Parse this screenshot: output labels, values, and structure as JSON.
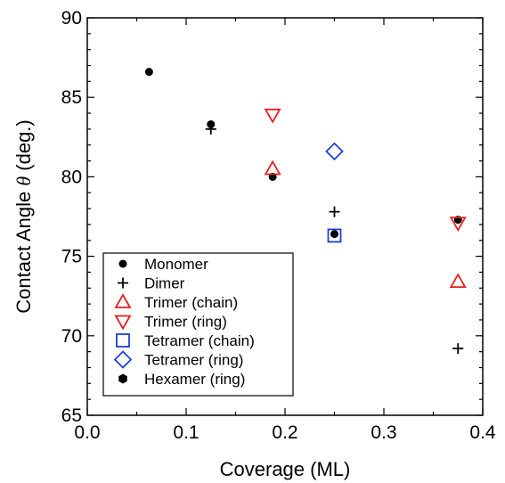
{
  "chart_data": {
    "type": "scatter",
    "xlabel": "Coverage (ML)",
    "ylabel_prefix": "Contact Angle ",
    "ylabel_symbol": "θ",
    "ylabel_suffix": " (deg.)",
    "xlim": [
      0.0,
      0.4
    ],
    "ylim": [
      65,
      90
    ],
    "x_ticks": [
      0.0,
      0.1,
      0.2,
      0.3,
      0.4
    ],
    "x_tick_labels": [
      "0.0",
      "0.1",
      "0.2",
      "0.3",
      "0.4"
    ],
    "y_ticks": [
      65,
      70,
      75,
      80,
      85,
      90
    ],
    "y_tick_labels": [
      "65",
      "70",
      "75",
      "80",
      "85",
      "90"
    ],
    "grid": false,
    "legend_position": "bottom-left",
    "series": [
      {
        "name": "Monomer",
        "marker": "filled-circle",
        "color": "#000000",
        "points": [
          [
            0.0625,
            86.6
          ],
          [
            0.125,
            83.3
          ],
          [
            0.1875,
            80.0
          ],
          [
            0.25,
            76.4
          ],
          [
            0.375,
            77.3
          ]
        ]
      },
      {
        "name": "Dimer",
        "marker": "plus",
        "color": "#000000",
        "points": [
          [
            0.125,
            83.0
          ],
          [
            0.25,
            77.8
          ],
          [
            0.375,
            69.2
          ]
        ]
      },
      {
        "name": "Trimer (chain)",
        "marker": "triangle-up",
        "color": "#e8201c",
        "points": [
          [
            0.1875,
            80.5
          ],
          [
            0.375,
            73.4
          ]
        ]
      },
      {
        "name": "Trimer (ring)",
        "marker": "triangle-down",
        "color": "#e8201c",
        "points": [
          [
            0.1875,
            83.9
          ],
          [
            0.375,
            77.1
          ]
        ]
      },
      {
        "name": "Tetramer (chain)",
        "marker": "square",
        "color": "#1f3fd6",
        "points": [
          [
            0.25,
            76.3
          ]
        ]
      },
      {
        "name": "Tetramer (ring)",
        "marker": "diamond",
        "color": "#1f3fd6",
        "points": [
          [
            0.25,
            81.6
          ]
        ]
      },
      {
        "name": "Hexamer (ring)",
        "marker": "filled-hexagon",
        "color": "#000000",
        "points": []
      }
    ]
  }
}
